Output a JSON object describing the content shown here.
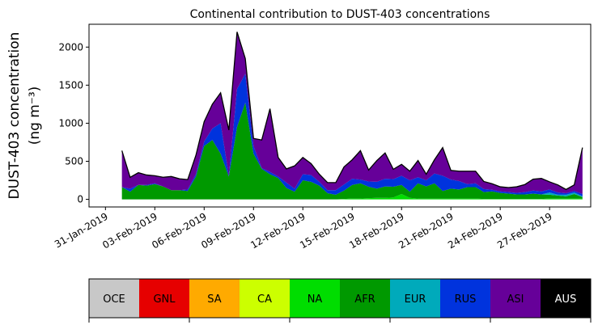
{
  "chart_data": {
    "type": "area",
    "stacked": true,
    "title": "Continental contribution to DUST-403 concentrations",
    "ylabel_line1": "DUST-403 concentration",
    "ylabel_line2": "(ng m⁻³)",
    "xlabel": "",
    "ylim": [
      -100,
      2300
    ],
    "yticks": [
      0,
      500,
      1000,
      1500,
      2000
    ],
    "xlim": [
      0,
      30.5
    ],
    "xticks": [
      {
        "x": 1,
        "label": "31-Jan-2019"
      },
      {
        "x": 4,
        "label": "03-Feb-2019"
      },
      {
        "x": 7,
        "label": "06-Feb-2019"
      },
      {
        "x": 10,
        "label": "09-Feb-2019"
      },
      {
        "x": 13,
        "label": "12-Feb-2019"
      },
      {
        "x": 16,
        "label": "15-Feb-2019"
      },
      {
        "x": 19,
        "label": "18-Feb-2019"
      },
      {
        "x": 22,
        "label": "21-Feb-2019"
      },
      {
        "x": 25,
        "label": "24-Feb-2019"
      },
      {
        "x": 28,
        "label": "27-Feb-2019"
      }
    ],
    "grid": false,
    "x": [
      2,
      2.5,
      3,
      3.5,
      4,
      4.5,
      5,
      5.5,
      6,
      6.5,
      7,
      7.5,
      8,
      8.5,
      9,
      9.5,
      10,
      10.5,
      11,
      11.5,
      12,
      12.5,
      13,
      13.5,
      14,
      14.5,
      15,
      15.5,
      16,
      16.5,
      17,
      17.5,
      18,
      18.5,
      19,
      19.5,
      20,
      20.5,
      21,
      21.5,
      22,
      22.5,
      23,
      23.5,
      24,
      24.5,
      25,
      25.5,
      26,
      26.5,
      27,
      27.5,
      28,
      28.5,
      29,
      29.5,
      30
    ],
    "series": [
      {
        "name": "OCE",
        "color": "#c8c8c8",
        "values": [
          0,
          0,
          0,
          0,
          0,
          0,
          0,
          0,
          0,
          0,
          0,
          0,
          0,
          0,
          0,
          0,
          0,
          0,
          0,
          0,
          0,
          0,
          0,
          0,
          0,
          0,
          0,
          0,
          0,
          0,
          0,
          0,
          0,
          0,
          0,
          0,
          0,
          0,
          0,
          0,
          0,
          0,
          0,
          0,
          0,
          0,
          0,
          0,
          0,
          0,
          0,
          0,
          0,
          0,
          0,
          0,
          0
        ]
      },
      {
        "name": "GNL",
        "color": "#e60000",
        "values": [
          0,
          0,
          0,
          0,
          0,
          0,
          0,
          0,
          0,
          0,
          0,
          0,
          0,
          0,
          0,
          0,
          0,
          0,
          0,
          0,
          0,
          0,
          0,
          0,
          0,
          0,
          0,
          0,
          0,
          0,
          0,
          0,
          0,
          0,
          0,
          0,
          0,
          0,
          0,
          0,
          0,
          0,
          0,
          0,
          0,
          0,
          0,
          0,
          0,
          0,
          0,
          0,
          0,
          0,
          0,
          0,
          0
        ]
      },
      {
        "name": "SA",
        "color": "#ffaa00",
        "values": [
          0,
          0,
          0,
          0,
          0,
          0,
          0,
          0,
          0,
          0,
          0,
          0,
          0,
          0,
          0,
          0,
          0,
          0,
          0,
          0,
          0,
          0,
          0,
          0,
          0,
          0,
          0,
          0,
          0,
          0,
          0,
          0,
          0,
          0,
          0,
          0,
          0,
          0,
          0,
          0,
          0,
          0,
          0,
          0,
          0,
          0,
          0,
          0,
          0,
          0,
          0,
          0,
          0,
          0,
          0,
          0,
          0
        ]
      },
      {
        "name": "CA",
        "color": "#ccff00",
        "values": [
          0,
          0,
          0,
          0,
          0,
          0,
          0,
          0,
          0,
          0,
          0,
          0,
          0,
          0,
          0,
          0,
          0,
          0,
          0,
          0,
          0,
          0,
          0,
          0,
          0,
          0,
          0,
          0,
          0,
          0,
          0,
          0,
          0,
          0,
          0,
          0,
          0,
          0,
          0,
          0,
          0,
          0,
          0,
          0,
          0,
          0,
          0,
          0,
          0,
          0,
          0,
          0,
          0,
          0,
          0,
          0,
          0
        ]
      },
      {
        "name": "NA",
        "color": "#00dd00",
        "values": [
          0,
          0,
          0,
          0,
          0,
          0,
          0,
          0,
          0,
          0,
          0,
          0,
          0,
          0,
          0,
          0,
          0,
          0,
          0,
          0,
          0,
          0,
          0,
          0,
          0,
          0,
          0,
          5,
          10,
          10,
          15,
          20,
          20,
          25,
          70,
          20,
          10,
          10,
          10,
          10,
          10,
          10,
          10,
          10,
          5,
          5,
          5,
          5,
          5,
          5,
          5,
          5,
          10,
          10,
          10,
          10,
          10
        ]
      },
      {
        "name": "AFR",
        "color": "#009900",
        "values": [
          160,
          100,
          190,
          180,
          200,
          170,
          120,
          120,
          110,
          300,
          700,
          780,
          600,
          300,
          950,
          1270,
          600,
          400,
          330,
          280,
          150,
          100,
          250,
          230,
          180,
          80,
          60,
          110,
          180,
          200,
          150,
          120,
          150,
          140,
          120,
          80,
          200,
          160,
          200,
          100,
          130,
          120,
          150,
          150,
          90,
          100,
          80,
          70,
          60,
          60,
          70,
          60,
          50,
          40,
          30,
          60,
          20
        ]
      },
      {
        "name": "EUR",
        "color": "#00aabb",
        "values": [
          0,
          0,
          0,
          0,
          0,
          0,
          0,
          0,
          0,
          0,
          0,
          0,
          0,
          0,
          0,
          0,
          0,
          0,
          0,
          0,
          0,
          0,
          0,
          0,
          0,
          0,
          0,
          0,
          0,
          0,
          0,
          0,
          0,
          0,
          0,
          0,
          0,
          0,
          0,
          0,
          0,
          0,
          0,
          0,
          0,
          0,
          0,
          0,
          0,
          0,
          0,
          0,
          30,
          10,
          20,
          20,
          10
        ]
      },
      {
        "name": "RUS",
        "color": "#0033dd",
        "values": [
          0,
          40,
          0,
          10,
          10,
          0,
          0,
          0,
          20,
          30,
          60,
          150,
          400,
          10,
          500,
          380,
          100,
          10,
          30,
          20,
          70,
          40,
          80,
          90,
          50,
          40,
          60,
          80,
          80,
          50,
          70,
          90,
          100,
          100,
          120,
          150,
          80,
          80,
          130,
          200,
          120,
          110,
          40,
          50,
          40,
          20,
          20,
          20,
          20,
          30,
          40,
          40,
          40,
          30,
          20,
          20,
          30
        ]
      },
      {
        "name": "ASI",
        "color": "#660099",
        "values": [
          480,
          150,
          160,
          130,
          100,
          120,
          180,
          150,
          130,
          250,
          260,
          320,
          400,
          600,
          750,
          200,
          100,
          370,
          830,
          250,
          180,
          300,
          220,
          150,
          100,
          100,
          100,
          230,
          250,
          380,
          150,
          280,
          340,
          130,
          150,
          120,
          220,
          80,
          180,
          370,
          120,
          130,
          170,
          160,
          100,
          80,
          60,
          60,
          80,
          100,
          150,
          170,
          100,
          100,
          50,
          80,
          610
        ]
      },
      {
        "name": "AUS",
        "color": "#000000",
        "values": [
          0,
          0,
          0,
          0,
          0,
          0,
          0,
          0,
          0,
          0,
          0,
          0,
          0,
          0,
          0,
          0,
          0,
          0,
          0,
          0,
          0,
          0,
          0,
          0,
          0,
          0,
          0,
          0,
          0,
          0,
          0,
          0,
          0,
          0,
          0,
          0,
          0,
          0,
          0,
          0,
          0,
          0,
          0,
          0,
          0,
          0,
          0,
          0,
          0,
          0,
          0,
          0,
          0,
          0,
          0,
          0,
          0
        ]
      }
    ]
  },
  "legend": {
    "items": [
      {
        "label": "OCE",
        "color": "#c8c8c8",
        "text_color": "#000000"
      },
      {
        "label": "GNL",
        "color": "#e60000",
        "text_color": "#000000"
      },
      {
        "label": "SA",
        "color": "#ffaa00",
        "text_color": "#000000"
      },
      {
        "label": "CA",
        "color": "#ccff00",
        "text_color": "#000000"
      },
      {
        "label": "NA",
        "color": "#00dd00",
        "text_color": "#000000"
      },
      {
        "label": "AFR",
        "color": "#009900",
        "text_color": "#000000"
      },
      {
        "label": "EUR",
        "color": "#00aabb",
        "text_color": "#000000"
      },
      {
        "label": "RUS",
        "color": "#0033dd",
        "text_color": "#000000"
      },
      {
        "label": "ASI",
        "color": "#660099",
        "text_color": "#000000"
      },
      {
        "label": "AUS",
        "color": "#000000",
        "text_color": "#ffffff"
      }
    ]
  }
}
